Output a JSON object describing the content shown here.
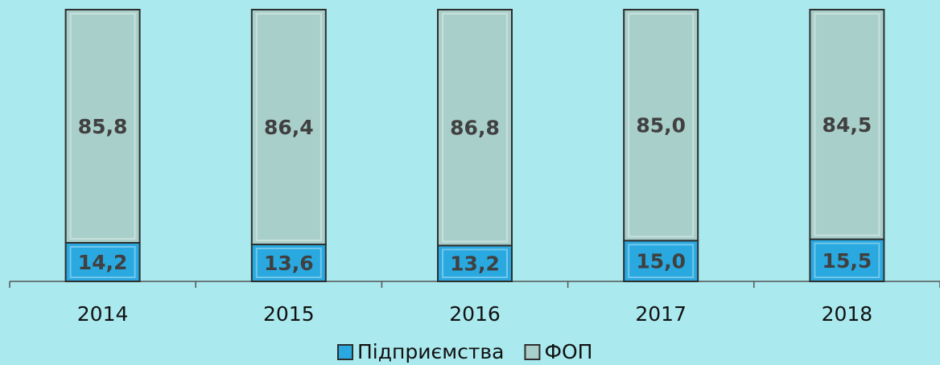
{
  "chart_data": {
    "type": "stacked-bar",
    "categories": [
      "2014",
      "2015",
      "2016",
      "2017",
      "2018"
    ],
    "series": [
      {
        "name": "Підприємства",
        "color": "#29a9e0",
        "values": [
          14.2,
          13.6,
          13.2,
          15.0,
          15.5
        ],
        "value_labels": [
          "14,2",
          "13,6",
          "13,2",
          "15,0",
          "15,5"
        ]
      },
      {
        "name": "ФОП",
        "color": "#a9cfca",
        "values": [
          85.8,
          86.4,
          86.8,
          85.0,
          84.5
        ],
        "value_labels": [
          "85,8",
          "86,4",
          "86,8",
          "85,0",
          "84,5"
        ]
      }
    ],
    "ylim": [
      0,
      100
    ]
  }
}
